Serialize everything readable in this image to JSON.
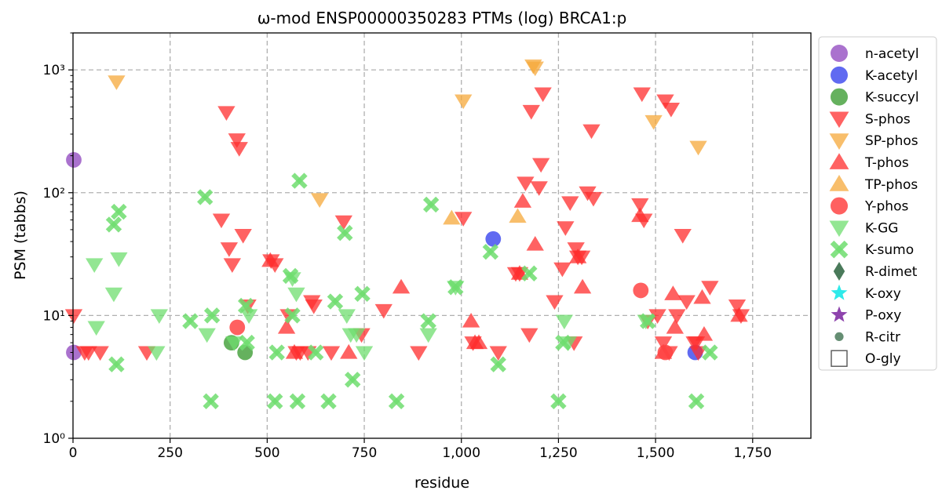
{
  "chart_data": {
    "type": "scatter",
    "title": "ω-mod ENSP00000350283 PTMs (log) BRCA1:p",
    "xlabel": "residue",
    "ylabel": "PSM (tabbs)",
    "xlim": [
      0,
      1900
    ],
    "ylim": [
      1,
      2000
    ],
    "yscale": "log",
    "grid": true,
    "legend_position": "right, outside plot",
    "x_ticks": [
      0,
      250,
      500,
      750,
      1000,
      1250,
      1500,
      1750
    ],
    "x_tick_labels": [
      "0",
      "250",
      "500",
      "750",
      "1,000",
      "1,250",
      "1,500",
      "1,750"
    ],
    "y_ticks": [
      1,
      10,
      100,
      1000
    ],
    "y_tick_labels": [
      "10⁰",
      "10¹",
      "10²",
      "10³"
    ],
    "series": [
      {
        "name": "n-acetyl",
        "marker": "circle",
        "color": "#9b59c6",
        "points": [
          [
            2,
            185
          ],
          [
            2,
            5
          ]
        ]
      },
      {
        "name": "K-acetyl",
        "marker": "circle",
        "color": "#4450ee",
        "points": [
          [
            1082,
            42
          ],
          [
            1602,
            5
          ]
        ]
      },
      {
        "name": "K-succyl",
        "marker": "circle",
        "color": "#4aa342",
        "points": [
          [
            408,
            6
          ],
          [
            443,
            5
          ]
        ]
      },
      {
        "name": "S-phos",
        "marker": "triangle-down",
        "color": "#ff2d2d",
        "points": [
          [
            2,
            10
          ],
          [
            30,
            5
          ],
          [
            40,
            5
          ],
          [
            70,
            5
          ],
          [
            190,
            5
          ],
          [
            382,
            60
          ],
          [
            395,
            450
          ],
          [
            402,
            35
          ],
          [
            410,
            26
          ],
          [
            422,
            270
          ],
          [
            428,
            230
          ],
          [
            438,
            45
          ],
          [
            450,
            12
          ],
          [
            510,
            28
          ],
          [
            520,
            26
          ],
          [
            555,
            10
          ],
          [
            575,
            5
          ],
          [
            585,
            5
          ],
          [
            605,
            5
          ],
          [
            615,
            13
          ],
          [
            620,
            12
          ],
          [
            665,
            5
          ],
          [
            697,
            58
          ],
          [
            743,
            7
          ],
          [
            800,
            11
          ],
          [
            890,
            5
          ],
          [
            1005,
            62
          ],
          [
            1030,
            6
          ],
          [
            1095,
            5
          ],
          [
            1140,
            22
          ],
          [
            1150,
            22
          ],
          [
            1165,
            120
          ],
          [
            1175,
            7
          ],
          [
            1180,
            460
          ],
          [
            1200,
            110
          ],
          [
            1205,
            170
          ],
          [
            1210,
            640
          ],
          [
            1240,
            13
          ],
          [
            1260,
            24
          ],
          [
            1268,
            52
          ],
          [
            1280,
            83
          ],
          [
            1290,
            6
          ],
          [
            1295,
            35
          ],
          [
            1300,
            30
          ],
          [
            1310,
            30
          ],
          [
            1325,
            100
          ],
          [
            1335,
            320
          ],
          [
            1340,
            90
          ],
          [
            1460,
            80
          ],
          [
            1465,
            640
          ],
          [
            1470,
            60
          ],
          [
            1480,
            9
          ],
          [
            1505,
            10
          ],
          [
            1520,
            6
          ],
          [
            1525,
            560
          ],
          [
            1535,
            5
          ],
          [
            1540,
            480
          ],
          [
            1555,
            10
          ],
          [
            1570,
            45
          ],
          [
            1580,
            13
          ],
          [
            1600,
            6
          ],
          [
            1605,
            6
          ],
          [
            1610,
            5
          ],
          [
            1640,
            17
          ],
          [
            1710,
            12
          ],
          [
            1720,
            10
          ]
        ]
      },
      {
        "name": "SP-phos",
        "marker": "triangle-down",
        "color": "#f5a83a",
        "points": [
          [
            112,
            800
          ],
          [
            635,
            88
          ],
          [
            1005,
            560
          ],
          [
            1185,
            1080
          ],
          [
            1190,
            1040
          ],
          [
            1495,
            380
          ],
          [
            1610,
            235
          ]
        ]
      },
      {
        "name": "T-phos",
        "marker": "triangle-up",
        "color": "#ff2d2d",
        "points": [
          [
            508,
            28
          ],
          [
            550,
            8
          ],
          [
            570,
            5
          ],
          [
            710,
            5
          ],
          [
            845,
            17
          ],
          [
            1025,
            9
          ],
          [
            1035,
            6
          ],
          [
            1045,
            6
          ],
          [
            1150,
            22
          ],
          [
            1158,
            85
          ],
          [
            1190,
            38
          ],
          [
            1300,
            30
          ],
          [
            1312,
            17
          ],
          [
            1460,
            65
          ],
          [
            1520,
            5
          ],
          [
            1550,
            8
          ],
          [
            1545,
            15
          ],
          [
            1620,
            14
          ],
          [
            1625,
            7
          ],
          [
            1715,
            10
          ]
        ]
      },
      {
        "name": "TP-phos",
        "marker": "triangle-up",
        "color": "#f5a83a",
        "points": [
          [
            975,
            62
          ],
          [
            1145,
            64
          ]
        ]
      },
      {
        "name": "Y-phos",
        "marker": "circle",
        "color": "#ff4444",
        "points": [
          [
            423,
            8
          ],
          [
            1462,
            16
          ],
          [
            1525,
            5
          ]
        ]
      },
      {
        "name": "K-GG",
        "marker": "triangle-down",
        "color": "#6fdd6f",
        "points": [
          [
            55,
            26
          ],
          [
            60,
            8
          ],
          [
            105,
            15
          ],
          [
            118,
            29
          ],
          [
            215,
            5
          ],
          [
            222,
            10
          ],
          [
            345,
            7
          ],
          [
            415,
            6
          ],
          [
            453,
            10
          ],
          [
            565,
            20
          ],
          [
            575,
            15
          ],
          [
            705,
            10
          ],
          [
            715,
            7
          ],
          [
            730,
            7
          ],
          [
            750,
            5
          ],
          [
            915,
            7
          ],
          [
            985,
            17
          ],
          [
            1265,
            9
          ],
          [
            1275,
            6
          ],
          [
            1475,
            9
          ]
        ]
      },
      {
        "name": "K-sumo",
        "marker": "x",
        "color": "#6fdd6f",
        "points": [
          [
            105,
            55
          ],
          [
            112,
            4
          ],
          [
            118,
            70
          ],
          [
            302,
            9
          ],
          [
            340,
            92
          ],
          [
            355,
            2
          ],
          [
            358,
            10
          ],
          [
            445,
            12
          ],
          [
            448,
            6
          ],
          [
            520,
            2
          ],
          [
            525,
            5
          ],
          [
            560,
            21
          ],
          [
            565,
            10
          ],
          [
            578,
            2
          ],
          [
            583,
            125
          ],
          [
            625,
            5
          ],
          [
            658,
            2
          ],
          [
            675,
            13
          ],
          [
            700,
            47
          ],
          [
            720,
            3
          ],
          [
            745,
            15
          ],
          [
            833,
            2
          ],
          [
            915,
            9
          ],
          [
            922,
            80
          ],
          [
            985,
            17
          ],
          [
            1075,
            33
          ],
          [
            1095,
            4
          ],
          [
            1175,
            22
          ],
          [
            1250,
            2
          ],
          [
            1262,
            6
          ],
          [
            1480,
            9
          ],
          [
            1605,
            2
          ],
          [
            1640,
            5
          ]
        ]
      },
      {
        "name": "R-dimet",
        "marker": "diamond",
        "color": "#4a7a5a",
        "points": []
      },
      {
        "name": "K-oxy",
        "marker": "star",
        "color": "#2eeaea",
        "points": []
      },
      {
        "name": "P-oxy",
        "marker": "star",
        "color": "#8e44ad",
        "points": []
      },
      {
        "name": "R-citr",
        "marker": "small-circle",
        "color": "#4a7a5a",
        "points": []
      },
      {
        "name": "O-gly",
        "marker": "open-square",
        "color": "#555555",
        "points": []
      }
    ]
  }
}
